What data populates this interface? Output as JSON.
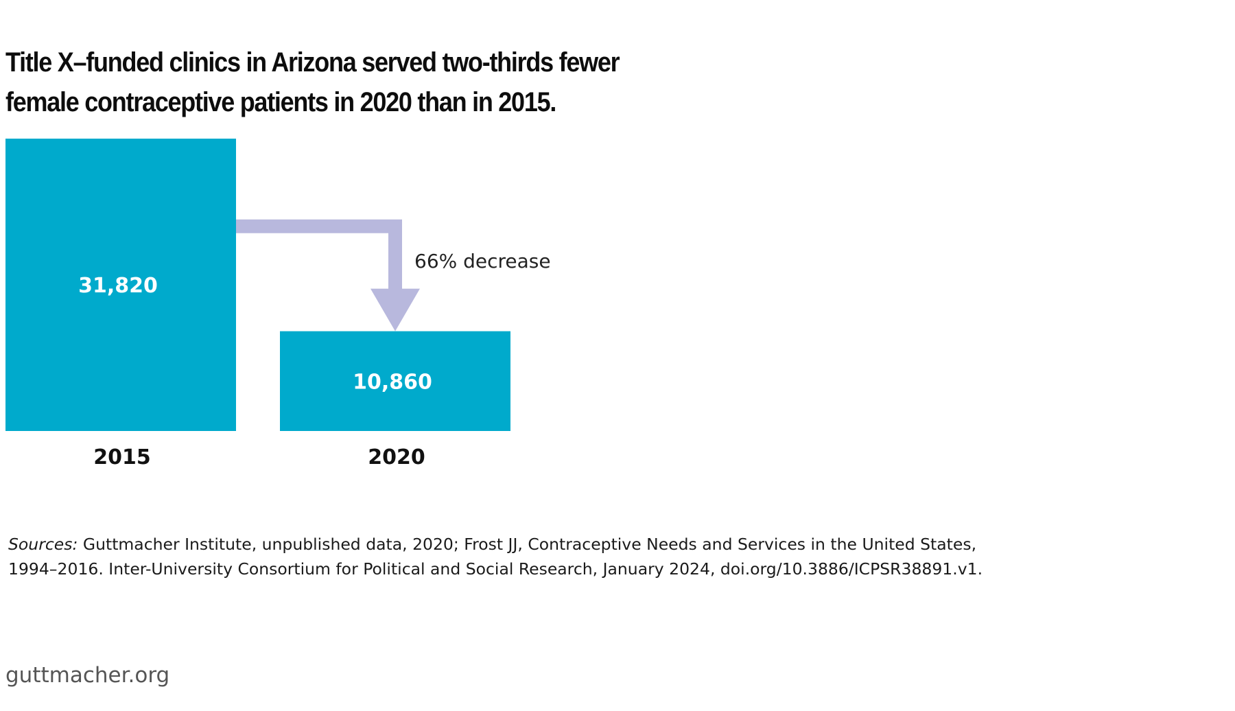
{
  "chart_data": {
    "type": "bar",
    "title": "Title X–funded clinics in Arizona served two-thirds fewer female contraceptive patients in 2020 than in 2015.",
    "categories": [
      "2015",
      "2020"
    ],
    "values": [
      31820,
      10860
    ],
    "value_labels": [
      "31,820",
      "10,860"
    ],
    "xlabel": "",
    "ylabel": "",
    "annotation": "66% decrease",
    "legend": "none",
    "grid": false
  },
  "sources": {
    "label": "Sources:",
    "text": "Guttmacher Institute, unpublished data, 2020; Frost JJ, Contraceptive Needs and Services in the United States, 1994–2016. Inter-University Consortium for Political and Social Research, January 2024, doi.org/10.3886/ICPSR38891.v1."
  },
  "footer": {
    "site": "guttmacher.org"
  },
  "colors": {
    "bar": "#00aacc",
    "arrow": "#b8b8dd",
    "value_text": "#ffffff",
    "title": "#0d0d0d",
    "footer": "#555555"
  }
}
